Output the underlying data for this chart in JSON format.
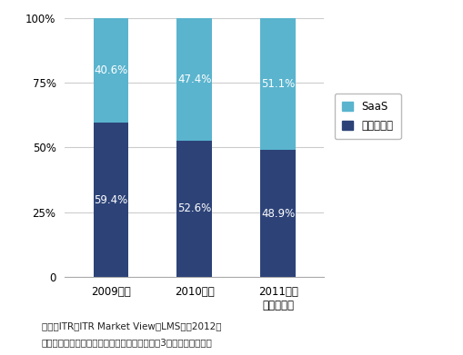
{
  "categories": [
    "2009年度",
    "2010年度",
    "2011年度\n（予測値）"
  ],
  "saas_values": [
    40.6,
    47.4,
    51.1
  ],
  "package_values": [
    59.4,
    52.6,
    48.9
  ],
  "saas_color": "#5ab4ce",
  "package_color": "#2d4378",
  "bar_width": 0.42,
  "ylim": [
    0,
    100
  ],
  "yticks": [
    0,
    25,
    50,
    75,
    100
  ],
  "ytick_labels": [
    "0",
    "25%",
    "50%",
    "75%",
    "100%"
  ],
  "legend_labels": [
    "SaaS",
    "パッケージ"
  ],
  "footnote1": "出典：ITR『ITR Market View：LMS市偳2012』",
  "footnote2": "＊出荷金額はベンダーの売上金額を対象とし、3月期ベースで換算",
  "bg_color": "#ffffff",
  "plot_bg_color": "#ffffff",
  "text_color_white": "#ffffff",
  "grid_color": "#cccccc",
  "font_size_label": 8.5,
  "font_size_pct": 8.5,
  "font_size_footnote": 7.5,
  "font_size_legend": 8.5
}
